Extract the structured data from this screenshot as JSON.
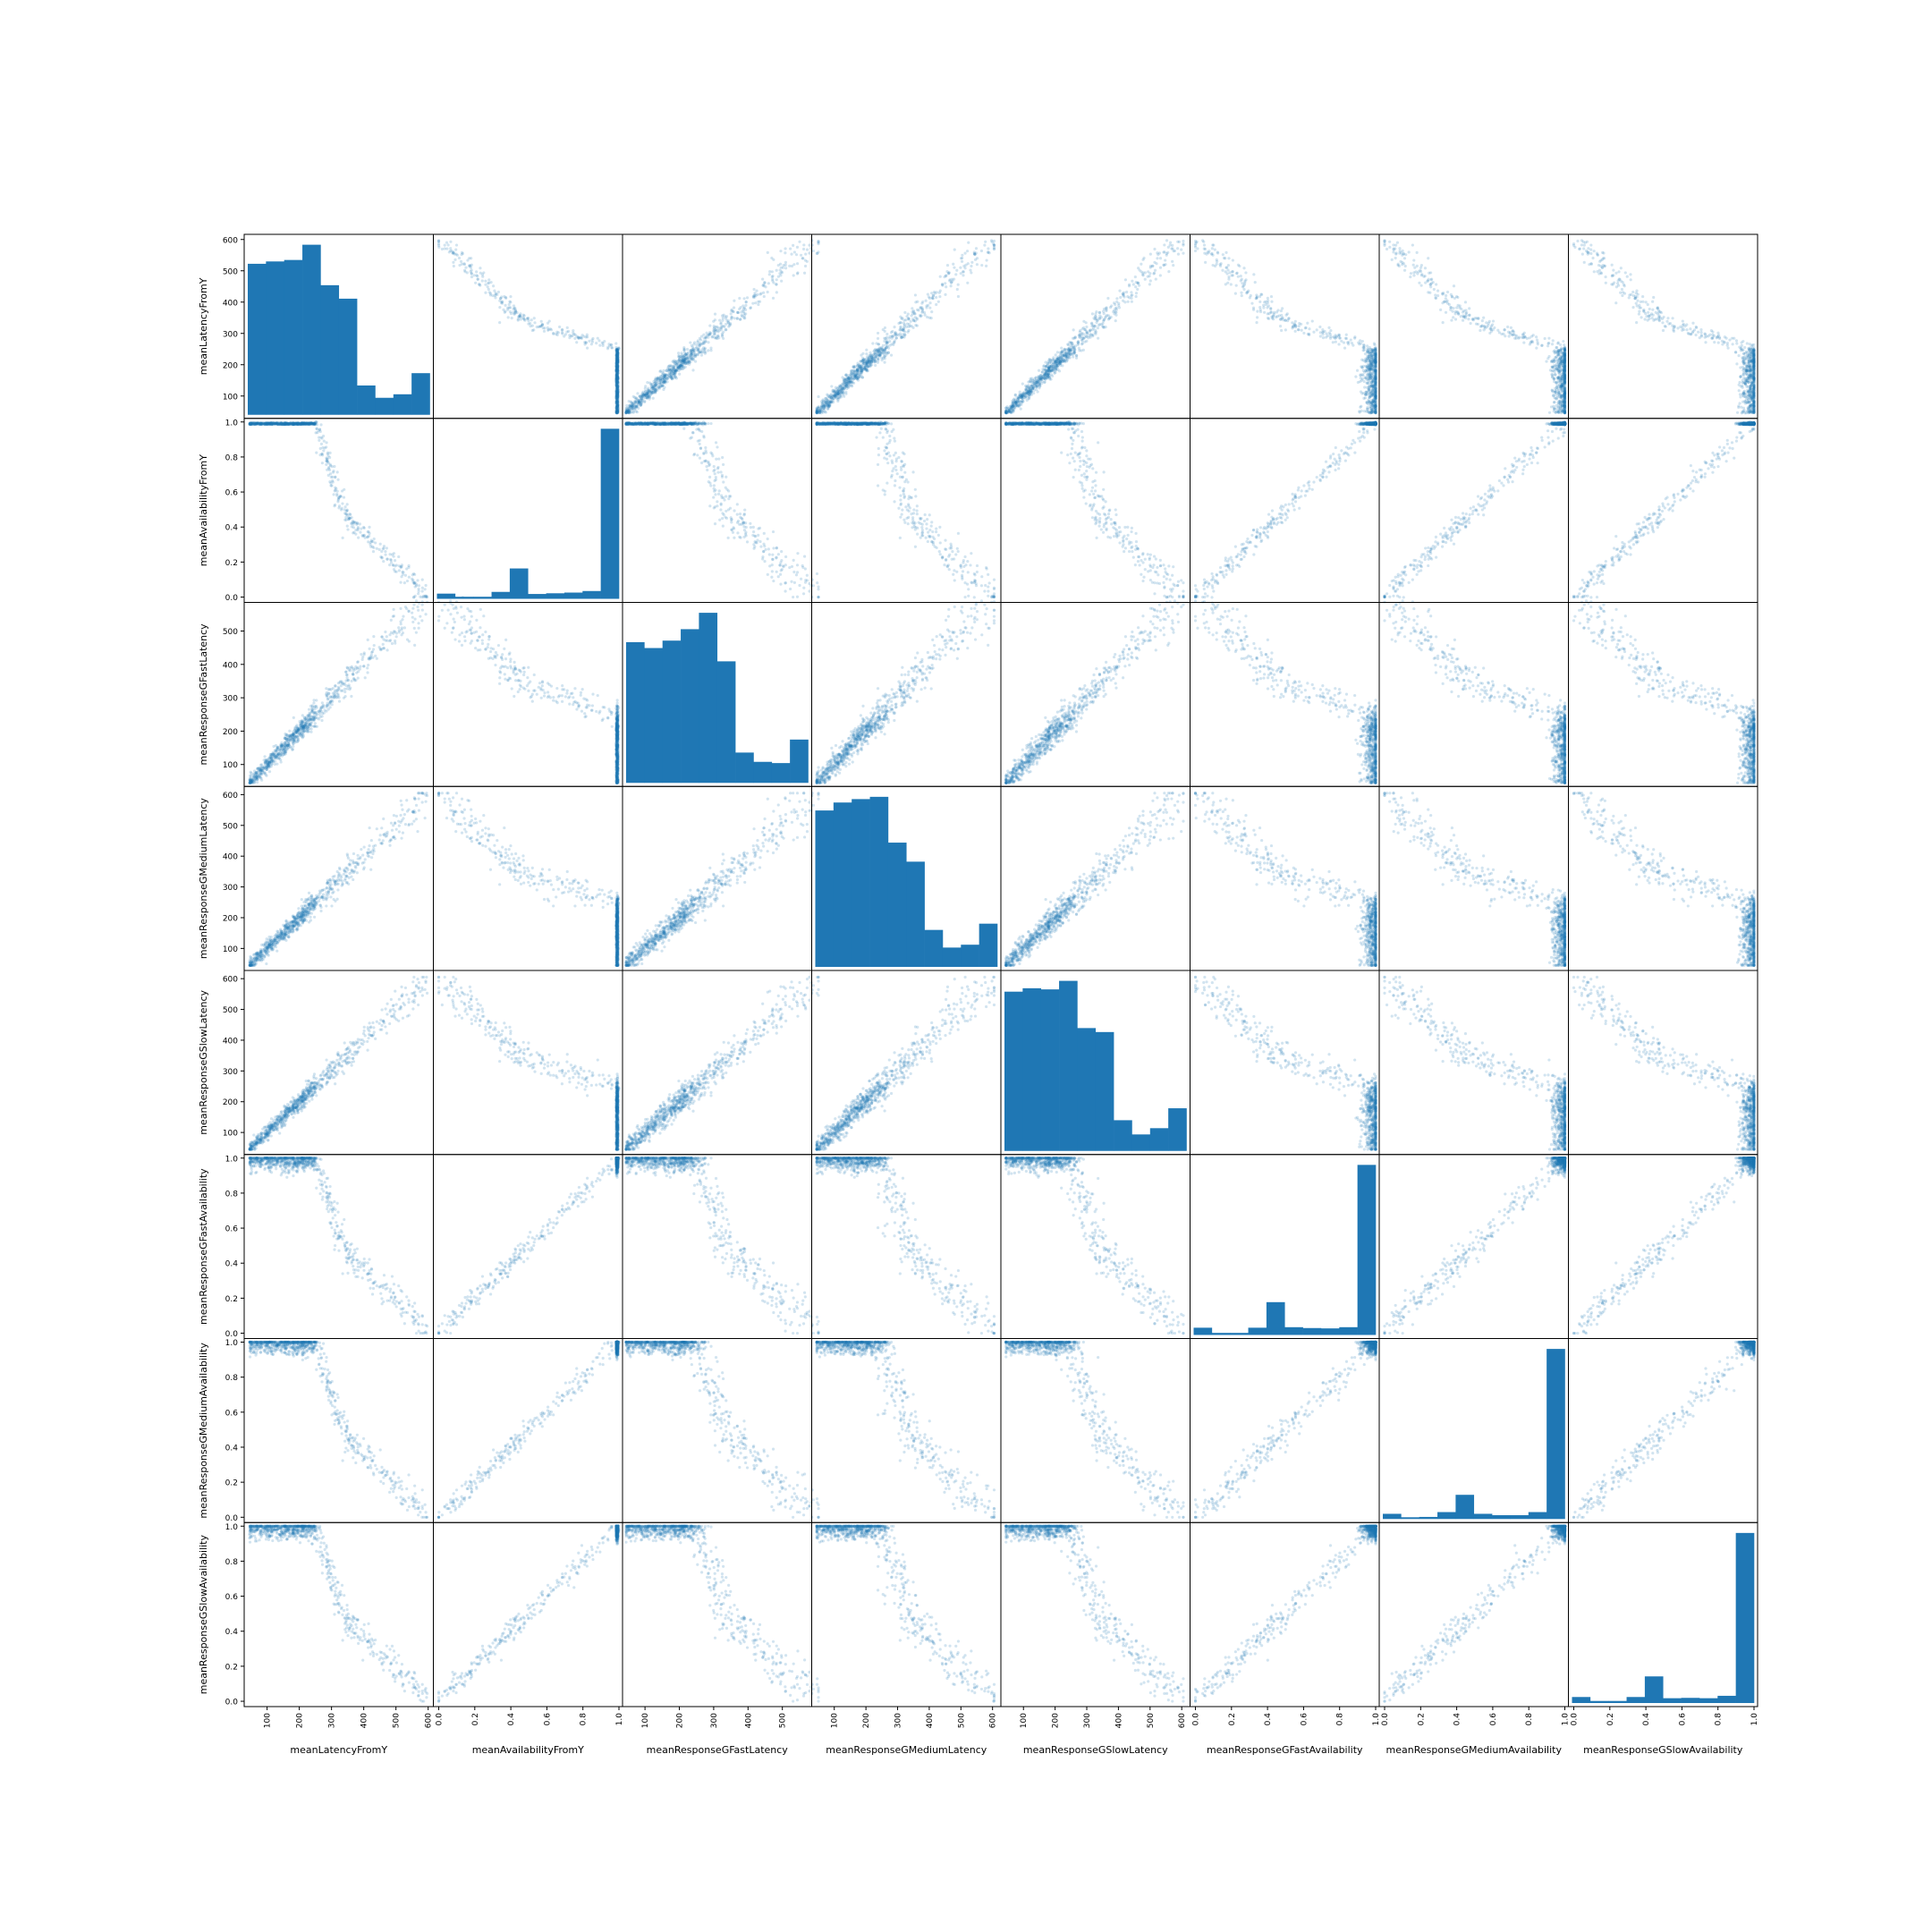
{
  "chart_data": {
    "type": "scatter-matrix",
    "diagonal": "hist",
    "color": "#1f77b4",
    "point_alpha": 0.2,
    "variables": [
      {
        "name": "meanLatencyFromY",
        "range": [
          40,
          605
        ],
        "ticks": [
          100,
          200,
          300,
          400,
          500,
          600
        ],
        "tick_labels": [
          "100",
          "200",
          "300",
          "400",
          "500",
          "600"
        ],
        "hist_counts": [
          515,
          523,
          528,
          580,
          442,
          396,
          100,
          58,
          70,
          142
        ]
      },
      {
        "name": "meanAvailabilityFromY",
        "range": [
          -0.01,
          1.0
        ],
        "ticks": [
          0.0,
          0.2,
          0.4,
          0.6,
          0.8,
          1.0
        ],
        "tick_labels": [
          "0.0",
          "0.2",
          "0.4",
          "0.6",
          "0.8",
          "1.0"
        ],
        "hist_counts": [
          30,
          12,
          12,
          40,
          175,
          28,
          32,
          36,
          45,
          980
        ]
      },
      {
        "name": "meanResponseGFastLatency",
        "range": [
          45,
          575
        ],
        "ticks": [
          100,
          200,
          300,
          400,
          500
        ],
        "tick_labels": [
          "100",
          "200",
          "300",
          "400",
          "500"
        ],
        "hist_counts": [
          455,
          436,
          460,
          497,
          550,
          393,
          98,
          68,
          64,
          140
        ]
      },
      {
        "name": "meanResponseGMediumLatency",
        "range": [
          40,
          615
        ],
        "ticks": [
          100,
          200,
          300,
          400,
          500,
          600
        ],
        "tick_labels": [
          "100",
          "200",
          "300",
          "400",
          "500",
          "600"
        ],
        "hist_counts": [
          550,
          578,
          590,
          598,
          437,
          370,
          130,
          68,
          78,
          152
        ]
      },
      {
        "name": "meanResponseGSlowLatency",
        "range": [
          40,
          615
        ],
        "ticks": [
          100,
          200,
          300,
          400,
          500,
          600
        ],
        "tick_labels": [
          "100",
          "200",
          "300",
          "400",
          "500",
          "600"
        ],
        "hist_counts": [
          560,
          572,
          568,
          598,
          432,
          418,
          108,
          58,
          80,
          150
        ]
      },
      {
        "name": "meanResponseGFastAvailability",
        "range": [
          -0.01,
          1.0
        ],
        "ticks": [
          0.0,
          0.2,
          0.4,
          0.6,
          0.8,
          1.0
        ],
        "tick_labels": [
          "0.0",
          "0.2",
          "0.4",
          "0.6",
          "0.8",
          "1.0"
        ],
        "hist_counts": [
          42,
          12,
          12,
          42,
          190,
          45,
          40,
          38,
          45,
          985
        ]
      },
      {
        "name": "meanResponseGMediumAvailability",
        "range": [
          -0.01,
          1.0
        ],
        "ticks": [
          0.0,
          0.2,
          0.4,
          0.6,
          0.8,
          1.0
        ],
        "tick_labels": [
          "0.0",
          "0.2",
          "0.4",
          "0.6",
          "0.8",
          "1.0"
        ],
        "hist_counts": [
          30,
          10,
          12,
          40,
          140,
          30,
          22,
          22,
          40,
          985
        ]
      },
      {
        "name": "meanResponseGSlowAvailability",
        "range": [
          -0.01,
          1.0
        ],
        "ticks": [
          0.0,
          0.2,
          0.4,
          0.6,
          0.8,
          1.0
        ],
        "tick_labels": [
          "0.0",
          "0.2",
          "0.4",
          "0.6",
          "0.8",
          "1.0"
        ],
        "hist_counts": [
          35,
          12,
          12,
          35,
          155,
          28,
          30,
          28,
          42,
          990
        ]
      }
    ]
  }
}
